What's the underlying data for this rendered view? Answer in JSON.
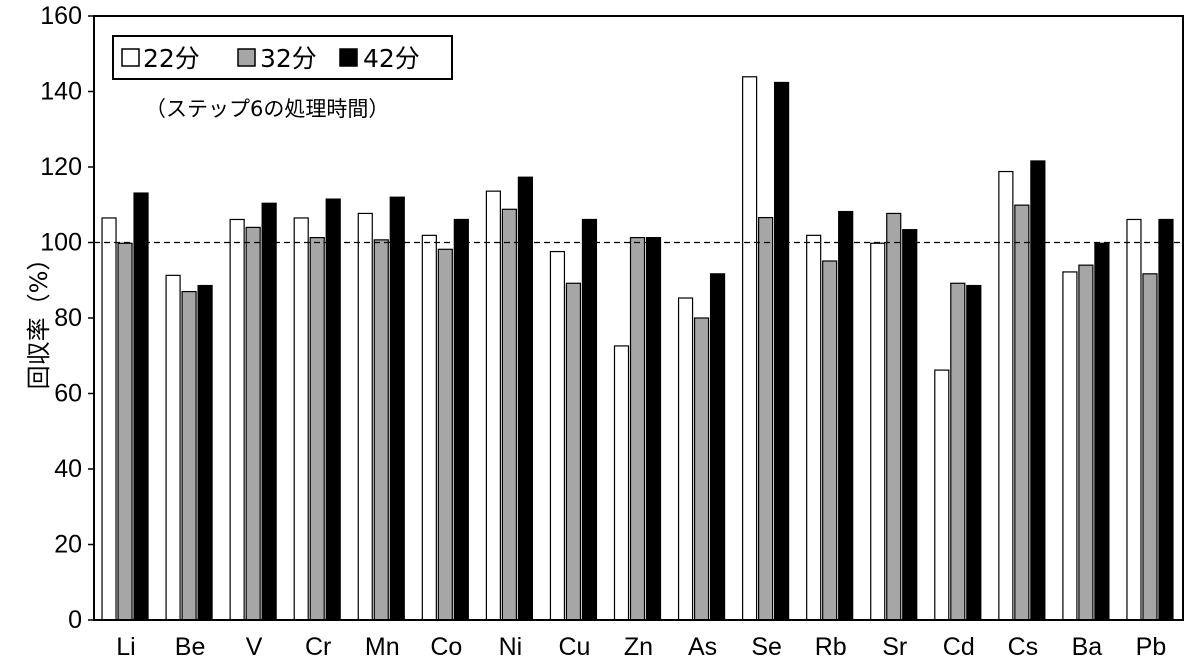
{
  "chart_data": {
    "type": "bar",
    "title": "",
    "xlabel": "",
    "ylabel": "回収率（%）",
    "ylim": [
      0,
      160
    ],
    "yticks": [
      0,
      20,
      40,
      60,
      80,
      100,
      120,
      140,
      160
    ],
    "reference_line": {
      "value": 100,
      "style": "dashed"
    },
    "grid": false,
    "legend_position": "top-left",
    "legend_note": "（ステップ6の処理時間）",
    "categories": [
      "Li",
      "Be",
      "V",
      "Cr",
      "Mn",
      "Co",
      "Ni",
      "Cu",
      "Zn",
      "As",
      "Se",
      "Rb",
      "Sr",
      "Cd",
      "Cs",
      "Ba",
      "Pb"
    ],
    "series": [
      {
        "name": "22分",
        "color": "#ffffff",
        "values": [
          106.5,
          91.3,
          106.1,
          106.5,
          107.7,
          101.9,
          113.6,
          97.6,
          72.6,
          85.3,
          143.9,
          101.9,
          99.8,
          66.2,
          118.8,
          92.2,
          106.1
        ]
      },
      {
        "name": "32分",
        "color": "#a6a6a6",
        "values": [
          99.8,
          87.0,
          104.0,
          101.3,
          100.7,
          98.2,
          108.8,
          89.2,
          101.3,
          80.0,
          106.6,
          95.1,
          107.7,
          89.2,
          109.9,
          94.0,
          91.7
        ]
      },
      {
        "name": "42分",
        "color": "#000000",
        "values": [
          113.1,
          88.6,
          110.4,
          111.5,
          112.0,
          106.1,
          117.3,
          106.1,
          101.3,
          91.7,
          142.4,
          108.2,
          103.4,
          88.6,
          121.6,
          99.8,
          106.1
        ]
      }
    ]
  }
}
